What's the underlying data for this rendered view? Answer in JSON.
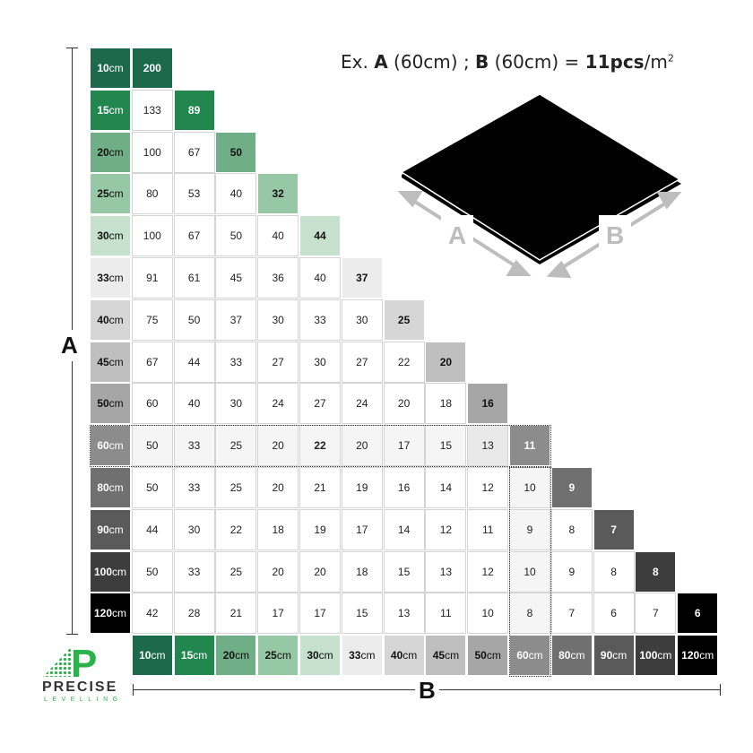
{
  "example": {
    "prefix": "Ex.",
    "a": "A",
    "a_size": "(60cm) ;",
    "b": "B",
    "b_size": "(60cm) =",
    "result": "11pcs",
    "unit": "/m",
    "exp": "2"
  },
  "axis": {
    "vertical": "A",
    "horizontal": "B"
  },
  "tile_labels": {
    "a": "A",
    "b": "B"
  },
  "logo": {
    "name": "PRECISE",
    "sub": "LEVELLING",
    "letter": "P"
  },
  "unit": "cm",
  "chart_data": {
    "type": "table",
    "row_axis": "A",
    "col_axis": "B",
    "sizes": [
      "10",
      "15",
      "20",
      "25",
      "30",
      "33",
      "40",
      "45",
      "50",
      "60",
      "80",
      "90",
      "100",
      "120"
    ],
    "size_colors": [
      "#1c694e",
      "#21874f",
      "#6fae86",
      "#97c8a6",
      "#c6e2cf",
      "#ececec",
      "#d6d6d6",
      "#bfbfbf",
      "#a6a6a6",
      "#8c8c8c",
      "#707070",
      "#5a5a5a",
      "#3d3d3d",
      "#000000"
    ],
    "highlight_size": "60",
    "rows": [
      [
        200
      ],
      [
        133,
        89
      ],
      [
        100,
        67,
        50
      ],
      [
        80,
        53,
        40,
        32
      ],
      [
        100,
        67,
        50,
        40,
        44
      ],
      [
        91,
        61,
        45,
        36,
        40,
        37
      ],
      [
        75,
        50,
        37,
        30,
        33,
        30,
        25
      ],
      [
        67,
        44,
        33,
        27,
        30,
        27,
        22,
        20
      ],
      [
        60,
        40,
        30,
        24,
        27,
        24,
        20,
        18,
        16
      ],
      [
        50,
        33,
        25,
        20,
        22,
        20,
        17,
        15,
        13,
        11
      ],
      [
        50,
        33,
        25,
        20,
        21,
        19,
        16,
        14,
        12,
        10,
        9
      ],
      [
        44,
        30,
        22,
        18,
        19,
        17,
        14,
        12,
        11,
        9,
        8,
        7
      ],
      [
        50,
        33,
        25,
        20,
        20,
        18,
        15,
        13,
        12,
        10,
        9,
        8,
        8
      ],
      [
        42,
        28,
        21,
        17,
        17,
        15,
        13,
        11,
        10,
        8,
        7,
        6,
        7,
        6
      ]
    ]
  }
}
